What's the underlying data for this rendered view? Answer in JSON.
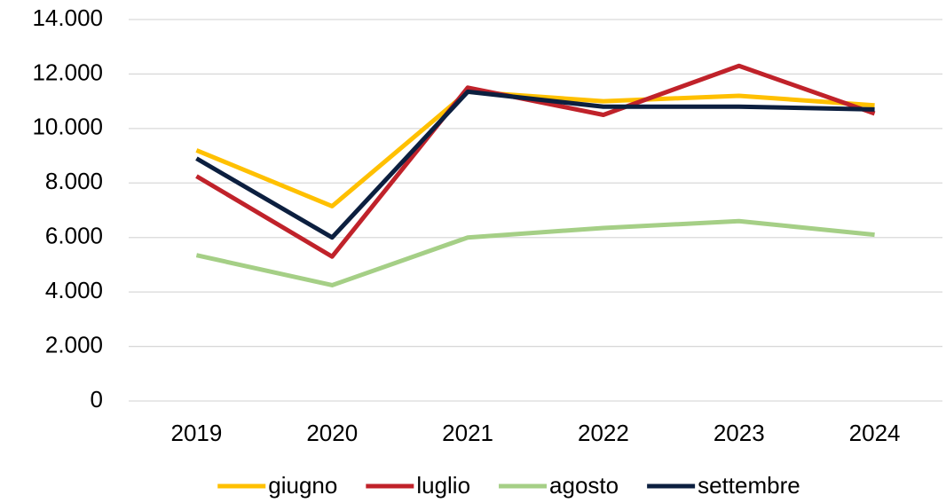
{
  "chart_data": {
    "type": "line",
    "categories": [
      "2019",
      "2020",
      "2021",
      "2022",
      "2023",
      "2024"
    ],
    "series": [
      {
        "name": "giugno",
        "color": "#ffc000",
        "values": [
          9200,
          7150,
          11350,
          11000,
          11200,
          10850
        ]
      },
      {
        "name": "luglio",
        "color": "#c0222a",
        "values": [
          8250,
          5300,
          11500,
          10500,
          12300,
          10550
        ]
      },
      {
        "name": "agosto",
        "color": "#a5cf86",
        "values": [
          5350,
          4250,
          6000,
          6350,
          6600,
          6100
        ]
      },
      {
        "name": "settembre",
        "color": "#0c1f3f",
        "values": [
          8900,
          6000,
          11350,
          10800,
          10800,
          10700
        ]
      }
    ],
    "ylim": [
      0,
      14000
    ],
    "yticks": [
      0,
      {
        "value": 2000,
        "label": "2.000"
      },
      {
        "value": 4000,
        "label": "4.000"
      },
      {
        "value": 6000,
        "label": "6.000"
      },
      {
        "value": 8000,
        "label": "8.000"
      },
      {
        "value": 10000,
        "label": "10.000"
      },
      {
        "value": 12000,
        "label": "12.000"
      },
      {
        "value": 14000,
        "label": "14.000"
      }
    ],
    "grid": true,
    "legend": "bottom"
  }
}
